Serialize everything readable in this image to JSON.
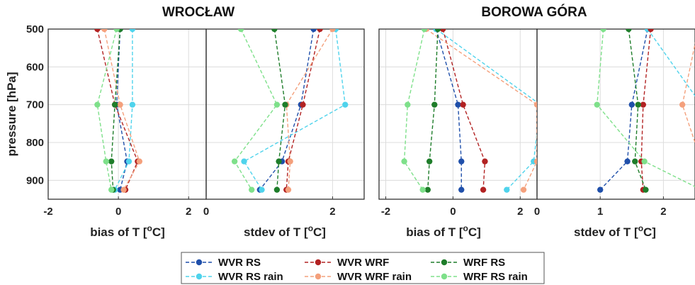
{
  "figure": {
    "titles": [
      "WROCŁAW",
      "BOROWA GÓRA"
    ],
    "ylabel": "pressure [hPa]",
    "xlabels": [
      "bias of T [",
      "o",
      "C]"
    ],
    "xlabels_stdev": [
      "stdev of T [",
      "o",
      "C]"
    ]
  },
  "legend": {
    "items": [
      {
        "label": "WVR RS",
        "color": "#1f4faa"
      },
      {
        "label": "WVR RS rain",
        "color": "#4fd3ec"
      },
      {
        "label": "WVR WRF",
        "color": "#b22222"
      },
      {
        "label": "WVR WRF rain",
        "color": "#f4a07c"
      },
      {
        "label": "WRF RS",
        "color": "#1e7d2a"
      },
      {
        "label": "WRF RS rain",
        "color": "#7ee08a"
      }
    ]
  },
  "chart_data": [
    {
      "type": "line",
      "title": "WROCŁAW",
      "xlabel": "bias of T [oC]",
      "ylabel": "pressure [hPa]",
      "xlim": [
        -2,
        2.5
      ],
      "xticks": [
        -2,
        0,
        2
      ],
      "ylim": [
        500,
        950
      ],
      "yticks": [
        500,
        600,
        700,
        800,
        900
      ],
      "y_reversed": true,
      "grid": true,
      "y": [
        500,
        700,
        850,
        925
      ],
      "series": [
        {
          "name": "WVR RS",
          "values": [
            0.05,
            -0.05,
            0.25,
            0.05
          ]
        },
        {
          "name": "WVR RS rain",
          "values": [
            0.4,
            0.4,
            0.3,
            -0.1
          ]
        },
        {
          "name": "WVR WRF",
          "values": [
            -0.6,
            -0.1,
            0.55,
            0.2
          ]
        },
        {
          "name": "WVR WRF rain",
          "values": [
            -0.4,
            0.05,
            0.6,
            0.15
          ]
        },
        {
          "name": "WRF RS",
          "values": [
            0.05,
            -0.1,
            -0.2,
            -0.15
          ]
        },
        {
          "name": "WRF RS rain",
          "values": [
            -0.05,
            -0.6,
            -0.35,
            -0.2
          ]
        }
      ]
    },
    {
      "type": "line",
      "xlabel": "stdev of T [oC]",
      "xlim": [
        0,
        2.5
      ],
      "xticks": [
        0,
        2
      ],
      "ylim": [
        500,
        950
      ],
      "y_reversed": true,
      "grid": true,
      "y": [
        500,
        700,
        850,
        925
      ],
      "series": [
        {
          "name": "WVR RS",
          "values": [
            1.7,
            1.5,
            1.2,
            0.85
          ]
        },
        {
          "name": "WVR RS rain",
          "values": [
            2.05,
            2.2,
            0.6,
            0.88
          ]
        },
        {
          "name": "WVR WRF",
          "values": [
            1.8,
            1.53,
            1.3,
            1.27
          ]
        },
        {
          "name": "WVR WRF rain",
          "values": [
            2.0,
            1.27,
            1.33,
            1.3
          ]
        },
        {
          "name": "WRF RS",
          "values": [
            1.08,
            1.25,
            1.15,
            1.12
          ]
        },
        {
          "name": "WRF RS rain",
          "values": [
            0.55,
            1.12,
            0.45,
            0.72
          ]
        }
      ]
    },
    {
      "type": "line",
      "title": "BOROWA GÓRA",
      "xlabel": "bias of T [oC]",
      "xlim": [
        -2.2,
        2.5
      ],
      "xticks": [
        -2,
        0,
        2
      ],
      "ylim": [
        500,
        950
      ],
      "y_reversed": true,
      "grid": true,
      "y": [
        500,
        700,
        850,
        925
      ],
      "series": [
        {
          "name": "WVR RS",
          "values": [
            -0.5,
            0.15,
            0.25,
            0.25
          ]
        },
        {
          "name": "WVR RS rain",
          "values": [
            -0.5,
            2.6,
            2.4,
            1.6
          ]
        },
        {
          "name": "WVR WRF",
          "values": [
            -0.3,
            0.3,
            0.95,
            0.9
          ]
        },
        {
          "name": "WVR WRF rain",
          "values": [
            -0.8,
            2.5,
            2.5,
            2.1
          ]
        },
        {
          "name": "WRF RS",
          "values": [
            -0.45,
            -0.55,
            -0.7,
            -0.75
          ]
        },
        {
          "name": "WRF RS rain",
          "values": [
            -0.85,
            -1.35,
            -1.45,
            -0.9
          ]
        }
      ]
    },
    {
      "type": "line",
      "xlabel": "stdev of T [oC]",
      "xlim": [
        0,
        2.5
      ],
      "xticks": [
        0,
        1,
        2
      ],
      "ylim": [
        500,
        950
      ],
      "y_reversed": true,
      "grid": true,
      "y": [
        500,
        700,
        850,
        925
      ],
      "series": [
        {
          "name": "WVR RS",
          "values": [
            1.75,
            1.5,
            1.43,
            1.0
          ]
        },
        {
          "name": "WVR RS rain",
          "values": [
            1.75,
            2.6,
            2.6,
            2.6
          ]
        },
        {
          "name": "WVR WRF",
          "values": [
            1.8,
            1.68,
            1.65,
            1.68
          ]
        },
        {
          "name": "WVR WRF rain",
          "values": [
            2.55,
            2.3,
            2.6,
            2.6
          ]
        },
        {
          "name": "WRF RS",
          "values": [
            1.45,
            1.6,
            1.55,
            1.72
          ]
        },
        {
          "name": "WRF RS rain",
          "values": [
            1.05,
            0.95,
            1.7,
            2.6
          ]
        }
      ]
    }
  ]
}
